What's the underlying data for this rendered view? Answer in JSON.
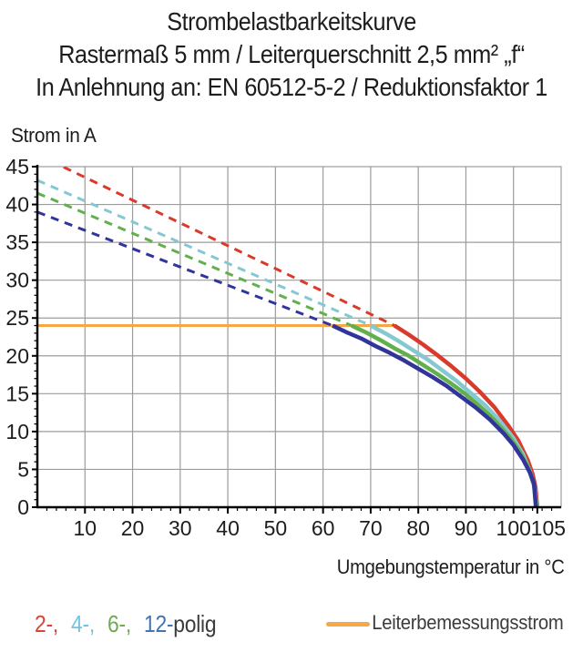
{
  "title": {
    "line1": "Strombelastbarkeitskurve",
    "line2": "Rastermaß 5 mm / Leiterquerschnitt 2,5 mm² „f“",
    "line3": "In Anlehnung an: EN 60512-5-2 / Reduktionsfaktor 1"
  },
  "chart_data": {
    "type": "line",
    "title": "Strombelastbarkeitskurve — Rastermaß 5 mm / Leiterquerschnitt 2,5 mm² „f“ — In Anlehnung an: EN 60512-5-2 / Reduktionsfaktor 1",
    "ylabel": "Strom in A",
    "xlabel": "Umgebungstemperatur in °C",
    "xlim": [
      0,
      110
    ],
    "ylim": [
      0,
      45
    ],
    "grid": true,
    "x_tick_labels": [
      10,
      20,
      30,
      40,
      50,
      60,
      70,
      80,
      90,
      100,
      105
    ],
    "y_tick_labels": [
      0,
      5,
      10,
      15,
      20,
      25,
      30,
      35,
      40,
      45
    ],
    "x_minor_step": 2,
    "y_minor_step": 1,
    "grid_color": "#9c9c9c",
    "axis_color": "#000000",
    "rated_current_a": 24,
    "rated_line": {
      "name": "Leiterbemessungsstrom",
      "color": "#f5a845",
      "points": [
        [
          0,
          24
        ],
        [
          75.3,
          24
        ]
      ]
    },
    "series": [
      {
        "name": "2-polig",
        "color": "#d93a2c",
        "dashed": [
          [
            0,
            46.6
          ],
          [
            75,
            24
          ]
        ],
        "solid": [
          [
            75,
            24
          ],
          [
            78,
            22.8
          ],
          [
            81,
            21.5
          ],
          [
            84,
            20.1
          ],
          [
            87,
            18.6
          ],
          [
            90,
            17.0
          ],
          [
            93,
            15.2
          ],
          [
            96,
            13.2
          ],
          [
            99,
            10.7
          ],
          [
            101,
            8.8
          ],
          [
            103,
            6.2
          ],
          [
            104,
            4.4
          ],
          [
            104.6,
            2.7
          ],
          [
            105,
            0
          ]
        ]
      },
      {
        "name": "4-polig",
        "color": "#85c8d2",
        "dashed": [
          [
            0,
            43.2
          ],
          [
            70,
            24
          ]
        ],
        "solid": [
          [
            70,
            24
          ],
          [
            73,
            23.0
          ],
          [
            76,
            21.9
          ],
          [
            79,
            20.7
          ],
          [
            82,
            19.5
          ],
          [
            85,
            18.1
          ],
          [
            88,
            16.7
          ],
          [
            91,
            15.1
          ],
          [
            94,
            13.5
          ],
          [
            97,
            11.5
          ],
          [
            100,
            9.1
          ],
          [
            102,
            7.0
          ],
          [
            103.5,
            4.7
          ],
          [
            104.4,
            2.6
          ],
          [
            104.9,
            0
          ]
        ]
      },
      {
        "name": "6-polig",
        "color": "#62b04d",
        "dashed": [
          [
            0,
            41.5
          ],
          [
            66,
            24
          ]
        ],
        "solid": [
          [
            66,
            24
          ],
          [
            69,
            23.1
          ],
          [
            72,
            22.1
          ],
          [
            75,
            21.0
          ],
          [
            78,
            20.0
          ],
          [
            81,
            18.8
          ],
          [
            84,
            17.6
          ],
          [
            87,
            16.3
          ],
          [
            90,
            14.9
          ],
          [
            93,
            13.3
          ],
          [
            96,
            11.5
          ],
          [
            99,
            9.4
          ],
          [
            101,
            7.7
          ],
          [
            103,
            5.4
          ],
          [
            104.3,
            2.9
          ],
          [
            104.8,
            0
          ]
        ]
      },
      {
        "name": "12-polig",
        "color": "#31349b",
        "dashed": [
          [
            0,
            39
          ],
          [
            62,
            24
          ]
        ],
        "solid": [
          [
            62,
            24
          ],
          [
            65,
            23.1
          ],
          [
            68,
            22.3
          ],
          [
            71,
            21.3
          ],
          [
            74,
            20.4
          ],
          [
            77,
            19.4
          ],
          [
            80,
            18.3
          ],
          [
            83,
            17.2
          ],
          [
            86,
            16.0
          ],
          [
            89,
            14.6
          ],
          [
            92,
            13.2
          ],
          [
            95,
            11.6
          ],
          [
            98,
            9.7
          ],
          [
            100,
            8.2
          ],
          [
            102,
            6.3
          ],
          [
            103.5,
            4.5
          ],
          [
            104.3,
            3.1
          ],
          [
            104.7,
            0
          ]
        ]
      }
    ]
  },
  "legend": {
    "pole_items": [
      {
        "label": "2-,",
        "color": "#d9453a"
      },
      {
        "label": "4-,",
        "color": "#74c2e0"
      },
      {
        "label": "6-,",
        "color": "#6bab52"
      },
      {
        "label": "12-",
        "color": "#4473b0"
      }
    ],
    "suffix": "polig",
    "rated": {
      "label": "Leiterbemessungsstrom",
      "swatch_color": "#f5a845"
    }
  }
}
